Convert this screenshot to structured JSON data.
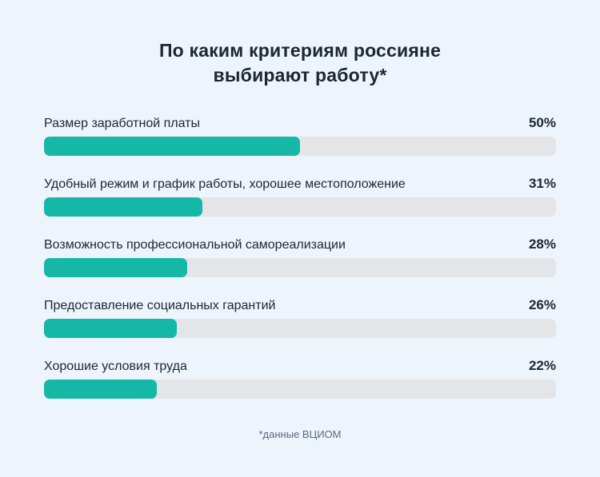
{
  "chart_data": {
    "type": "bar",
    "orientation": "horizontal",
    "title": "По каким критериям россияне выбирают работу*",
    "categories": [
      "Размер заработной платы",
      "Удобный режим и график работы, хорошее местоположение",
      "Возможность профессиональной самореализации",
      "Предоставление социальных гарантий",
      "Хорошие условия труда"
    ],
    "values": [
      50,
      31,
      28,
      26,
      22
    ],
    "value_labels": [
      "50%",
      "31%",
      "28%",
      "26%",
      "22%"
    ],
    "xlim": [
      0,
      100
    ],
    "grid": false,
    "legend": false,
    "footnote": "*данные ВЦИОМ"
  },
  "colors": {
    "background": "#edf4fc",
    "bar_fill": "#15b8a6",
    "bar_track": "#e4e5e9",
    "text": "#1c2733",
    "footnote_text": "#5a6a80"
  }
}
